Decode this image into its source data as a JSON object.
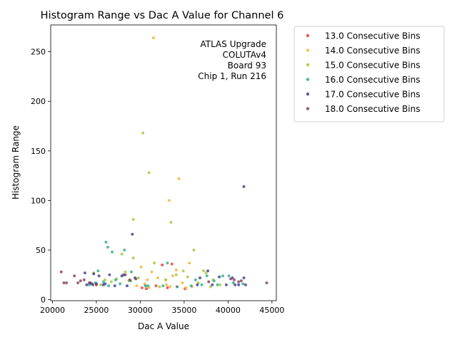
{
  "chart_data": {
    "type": "scatter",
    "title": "Histogram Range vs Dac A Value for Channel 6",
    "xlabel": "Dac A Value",
    "ylabel": "Histogram Range",
    "xlim": [
      19800,
      45500
    ],
    "ylim": [
      -1,
      277
    ],
    "xticks": [
      20000,
      25000,
      30000,
      35000,
      40000,
      45000
    ],
    "yticks": [
      0,
      50,
      100,
      150,
      200,
      250
    ],
    "annotation": [
      "ATLAS Upgrade",
      "COLUTAv4",
      "Board 93",
      "Chip 1, Run 216"
    ],
    "legend_position": "upper right, outside plot",
    "series": [
      {
        "name": "13.0 Consecutive Bins",
        "color": "#e8383b",
        "x": [
          30700,
          31800,
          32500,
          33100,
          33600,
          34200,
          30200,
          35100
        ],
        "y": [
          11,
          14,
          35,
          12,
          36,
          13,
          12,
          11
        ]
      },
      {
        "name": "14.0 Consecutive Bins",
        "color": "#f5b333",
        "x": [
          31500,
          34400,
          33300,
          30100,
          31300,
          33700,
          35600,
          32000,
          34800,
          30800,
          29600,
          35200,
          33400,
          31000,
          34100,
          32900,
          30500,
          35900,
          33000
        ],
        "y": [
          264,
          122,
          100,
          33,
          28,
          24,
          37,
          22,
          17,
          20,
          14,
          12,
          13,
          12,
          30,
          20,
          16,
          13,
          15
        ]
      },
      {
        "name": "15.0 Consecutive Bins",
        "color": "#a6c534",
        "x": [
          30300,
          31000,
          29200,
          33500,
          36100,
          27900,
          29200,
          31600,
          24700,
          28300,
          37200,
          32900,
          29800,
          26000,
          34900,
          27300,
          35400,
          37500,
          38300,
          30600,
          32200,
          36600,
          39100,
          26700,
          28700,
          34100,
          25500,
          38000
        ],
        "y": [
          168,
          128,
          81,
          78,
          50,
          46,
          42,
          37,
          27,
          28,
          29,
          20,
          22,
          20,
          29,
          21,
          23,
          27,
          20,
          14,
          13,
          17,
          15,
          18,
          19,
          25,
          15,
          13
        ]
      },
      {
        "name": "16.0 Consecutive Bins",
        "color": "#2eaa8a",
        "x": [
          26100,
          26300,
          26800,
          28200,
          29000,
          25200,
          27200,
          33100,
          30600,
          36300,
          37600,
          38400,
          39400,
          40100,
          24900,
          25800,
          27700,
          28900,
          30900,
          32600,
          34200,
          35800,
          37000,
          38800,
          40600,
          41700,
          24200,
          26400
        ],
        "y": [
          58,
          53,
          48,
          50,
          28,
          29,
          20,
          37,
          14,
          20,
          24,
          19,
          24,
          24,
          17,
          18,
          16,
          19,
          14,
          14,
          13,
          14,
          15,
          15,
          17,
          16,
          15,
          14
        ]
      },
      {
        "name": "17.0 Consecutive Bins",
        "color": "#3c3b8f",
        "x": [
          41800,
          29100,
          23700,
          24700,
          25300,
          26500,
          27900,
          29400,
          36800,
          37700,
          39000,
          40500,
          41800,
          23900,
          24500,
          25800,
          27100,
          28500,
          36500,
          38200,
          39800,
          41200,
          42000,
          40800,
          24300,
          25000,
          26000,
          28100
        ],
        "y": [
          114,
          66,
          27,
          26,
          24,
          25,
          24,
          22,
          22,
          29,
          23,
          22,
          22,
          15,
          16,
          15,
          14,
          14,
          15,
          15,
          15,
          15,
          15,
          15,
          17,
          16,
          16,
          25
        ]
      },
      {
        "name": "18.0 Consecutive Bins",
        "color": "#7d3f5a",
        "x": [
          21000,
          21300,
          21600,
          22500,
          22900,
          23200,
          23600,
          24200,
          25000,
          28300,
          29500,
          37800,
          40300,
          41200,
          44400,
          24600,
          28800,
          40700,
          41500
        ],
        "y": [
          28,
          17,
          17,
          24,
          17,
          19,
          20,
          17,
          15,
          25,
          21,
          18,
          21,
          18,
          17,
          15,
          20,
          20,
          19
        ]
      }
    ]
  }
}
